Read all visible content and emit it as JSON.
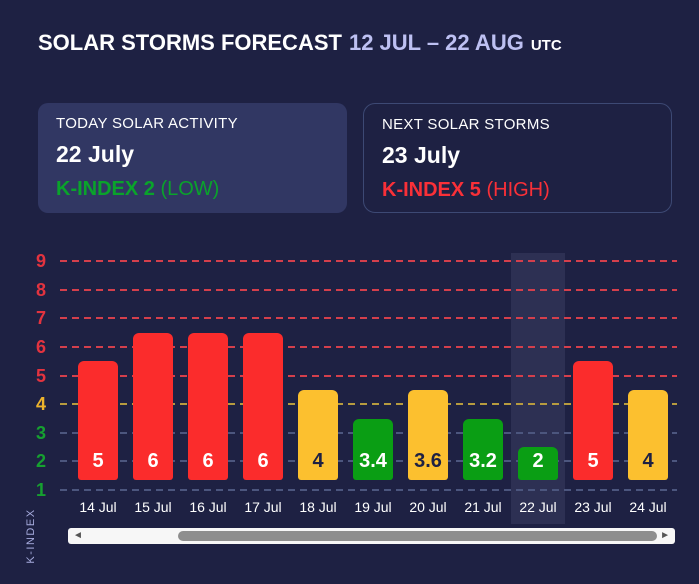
{
  "header": {
    "title": "SOLAR STORMS FORECAST",
    "date_range": "12 JUL – 22 AUG",
    "timezone": "UTC"
  },
  "cards": {
    "today": {
      "heading": "TODAY SOLAR ACTIVITY",
      "date": "22 July",
      "kindex": "K-INDEX 2",
      "level": "(LOW)",
      "status_color": "#0aa32b"
    },
    "next": {
      "heading": "NEXT SOLAR STORMS",
      "date": "23 July",
      "kindex": "K-INDEX 5",
      "level": "(HIGH)",
      "status_color": "#f93038"
    }
  },
  "chart_data": {
    "type": "bar",
    "categories": [
      "14 Jul",
      "15 Jul",
      "16 Jul",
      "17 Jul",
      "18 Jul",
      "19 Jul",
      "20 Jul",
      "21 Jul",
      "22 Jul",
      "23 Jul",
      "24 Jul"
    ],
    "values": [
      5,
      6,
      6,
      6,
      4,
      3.4,
      3.6,
      3.2,
      2,
      5,
      4
    ],
    "ylabel": "K-INDEX",
    "yticks": [
      1,
      2,
      3,
      4,
      5,
      6,
      7,
      8,
      9
    ],
    "ylim": [
      1,
      9
    ],
    "grid": "horizontal-dashed",
    "highlighted_category": "22 Jul",
    "palette": {
      "severe": "#fb2c2c",
      "moderate": "#fcc02f",
      "low": "#0a9e14",
      "label_on_moderate": "#1e2143",
      "label_on_other": "#ffffff",
      "tick_severe": "#e3333f",
      "tick_moderate": "#edb32c",
      "tick_low": "#16a130",
      "grid_severe": "#d43f4c",
      "grid_moderate": "#b79b3f",
      "grid_low": "#4c567e"
    }
  },
  "scrollbar": {
    "left_arrow": "◄",
    "right_arrow": "►"
  }
}
